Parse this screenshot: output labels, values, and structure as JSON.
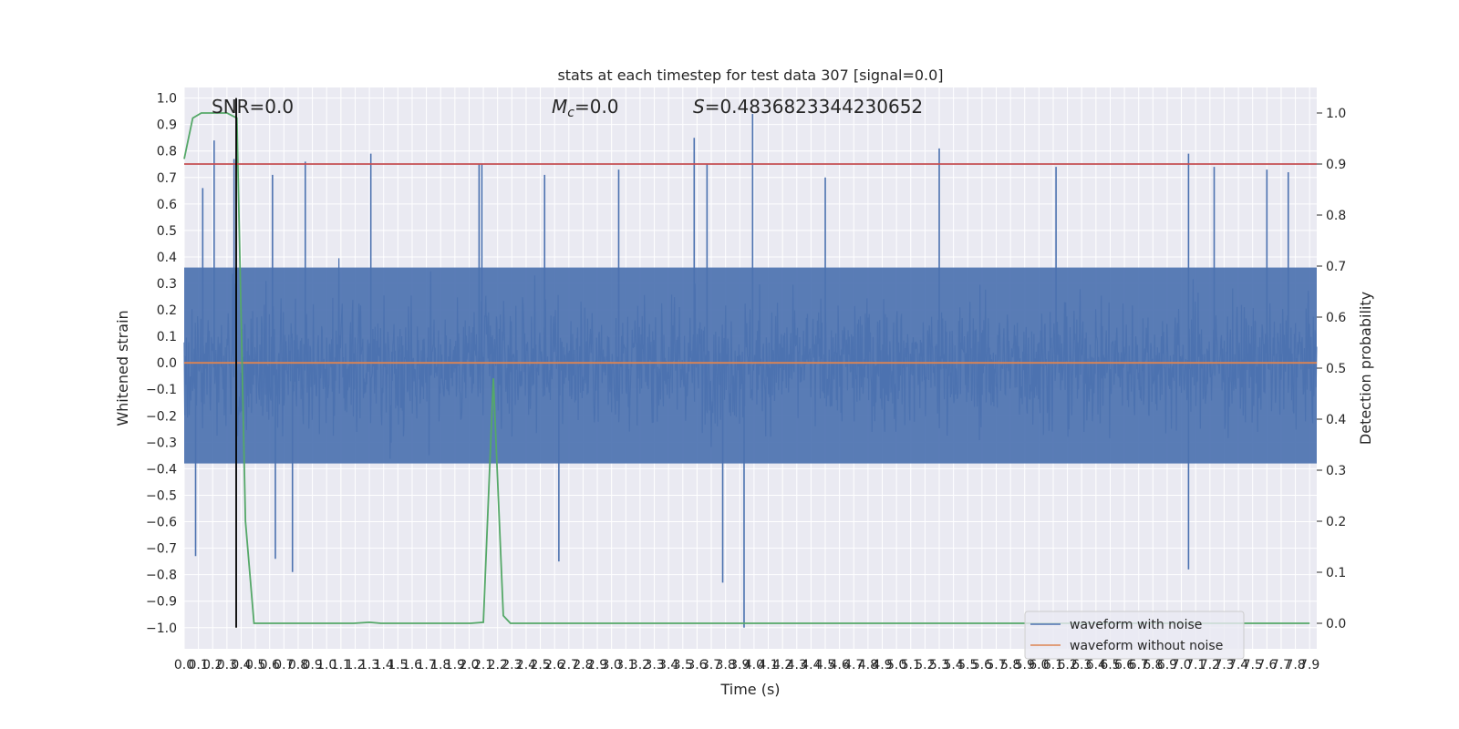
{
  "chart_data": {
    "type": "line",
    "title": "stats at each timestep for test data 307 [signal=0.0]",
    "xlabel": "Time (s)",
    "ylabel": "Whitened strain",
    "y2label": "Detection probability",
    "xlim": [
      0.0,
      7.95
    ],
    "ylim": [
      -1.08,
      1.04
    ],
    "y2lim": [
      -0.05,
      1.05
    ],
    "x_tick_step": 0.1,
    "y_ticks": [
      -1.0,
      -0.9,
      -0.8,
      -0.7,
      -0.6,
      -0.5,
      -0.4,
      -0.3,
      -0.2,
      -0.1,
      0.0,
      0.1,
      0.2,
      0.3,
      0.4,
      0.5,
      0.6,
      0.7,
      0.8,
      0.9,
      1.0
    ],
    "y2_ticks": [
      0.0,
      0.1,
      0.2,
      0.3,
      0.4,
      0.5,
      0.6,
      0.7,
      0.8,
      0.9,
      1.0
    ],
    "grid": true,
    "legend_position": "lower-right",
    "annotations": {
      "snr": "SNR=0.0",
      "mc_symbol": "M",
      "mc_sub": "c",
      "mc_value": "=0.0",
      "s_symbol": "S",
      "s_value": "=0.4836823344230652"
    },
    "series": [
      {
        "name": "waveform with noise",
        "color": "#4c72b0",
        "axis": "left",
        "envelope_note": "dense noise filling roughly -0.45..0.45 with spikes",
        "sample_rate_hz": 256,
        "core_amplitude": 0.36,
        "spikes": [
          {
            "x": 0.21,
            "y": 0.84
          },
          {
            "x": 0.13,
            "y": 0.66
          },
          {
            "x": 0.08,
            "y": -0.73
          },
          {
            "x": 0.35,
            "y": 0.77
          },
          {
            "x": 0.62,
            "y": 0.71
          },
          {
            "x": 0.64,
            "y": -0.74
          },
          {
            "x": 0.76,
            "y": -0.79
          },
          {
            "x": 0.85,
            "y": 0.76
          },
          {
            "x": 1.31,
            "y": 0.79
          },
          {
            "x": 2.07,
            "y": 0.75
          },
          {
            "x": 2.09,
            "y": 0.75
          },
          {
            "x": 2.53,
            "y": 0.71
          },
          {
            "x": 2.63,
            "y": -0.75
          },
          {
            "x": 3.05,
            "y": 0.73
          },
          {
            "x": 3.58,
            "y": 0.85
          },
          {
            "x": 3.67,
            "y": 0.75
          },
          {
            "x": 3.78,
            "y": -0.83
          },
          {
            "x": 3.93,
            "y": -1.0
          },
          {
            "x": 3.99,
            "y": 0.94
          },
          {
            "x": 4.5,
            "y": 0.7
          },
          {
            "x": 5.3,
            "y": 0.81
          },
          {
            "x": 6.12,
            "y": 0.74
          },
          {
            "x": 7.05,
            "y": 0.79
          },
          {
            "x": 7.05,
            "y": -0.78
          },
          {
            "x": 7.23,
            "y": 0.74
          },
          {
            "x": 7.6,
            "y": 0.73
          },
          {
            "x": 7.75,
            "y": 0.72
          }
        ]
      },
      {
        "name": "waveform without noise",
        "color": "#dd8452",
        "axis": "left",
        "x": [
          0.0,
          7.95
        ],
        "y": [
          0.0,
          0.0
        ]
      },
      {
        "color": "#55a868",
        "axis": "right",
        "x": [
          0.0,
          0.06,
          0.12,
          0.18,
          0.24,
          0.3,
          0.37,
          0.43,
          0.49,
          1.19,
          1.3,
          1.38,
          2.01,
          2.1,
          2.17,
          2.24,
          2.29,
          2.36,
          7.9
        ],
        "y": [
          0.91,
          0.99,
          1.0,
          1.0,
          1.0,
          1.0,
          0.99,
          0.2,
          0.0,
          0.0,
          0.002,
          0.0,
          0.0,
          0.002,
          0.48,
          0.015,
          0.0,
          0.0,
          0.0
        ]
      },
      {
        "color": "#c44e52",
        "axis": "right",
        "x": [
          0.0,
          7.95
        ],
        "y": [
          0.9,
          0.9
        ]
      },
      {
        "color": "#000000",
        "axis": "left",
        "x": [
          0.365,
          0.365
        ],
        "y": [
          -1.0,
          1.0
        ]
      }
    ]
  }
}
